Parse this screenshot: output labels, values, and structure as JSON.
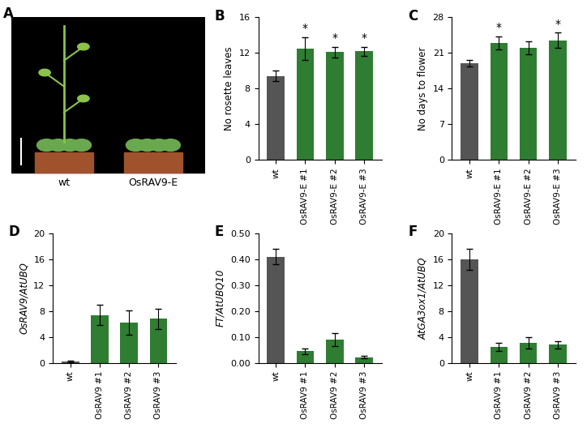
{
  "photo": {
    "label": "A",
    "texts": [
      "wt",
      "OsRAV9-E"
    ]
  },
  "chart_data": [
    {
      "label": "B",
      "type": "bar",
      "y_label": "No rosette leaves",
      "categories": [
        "wt",
        "OsRAV9-E #1",
        "OsRAV9-E #2",
        "OsRAV9-E #3"
      ],
      "values": [
        9.4,
        12.5,
        12.1,
        12.2
      ],
      "errors": [
        0.6,
        1.3,
        0.6,
        0.5
      ],
      "annotations": [
        null,
        "*",
        "*",
        "*"
      ],
      "colors": [
        "#555555",
        "#2f7d32",
        "#2f7d32",
        "#2f7d32"
      ],
      "ylim": [
        0,
        16
      ],
      "yticks": [
        0,
        4,
        8,
        12,
        16
      ]
    },
    {
      "label": "C",
      "type": "bar",
      "y_label": "No days to flower",
      "categories": [
        "wt",
        "OsRAV9-E #1",
        "OsRAV9-E #2",
        "OsRAV9-E #3"
      ],
      "values": [
        19,
        23,
        22,
        23.5
      ],
      "errors": [
        0.6,
        1.3,
        1.3,
        1.5
      ],
      "annotations": [
        null,
        "*",
        null,
        "*"
      ],
      "colors": [
        "#555555",
        "#2f7d32",
        "#2f7d32",
        "#2f7d32"
      ],
      "ylim": [
        0,
        28
      ],
      "yticks": [
        0,
        7,
        14,
        21,
        28
      ]
    },
    {
      "label": "D",
      "type": "bar",
      "y_label": "OsRAV9/AtUBQ",
      "categories": [
        "wt",
        "OsRAV9 #1",
        "OsRAV9 #2",
        "OsRAV9 #3"
      ],
      "values": [
        0.2,
        7.4,
        6.2,
        6.8
      ],
      "errors": [
        0.1,
        1.6,
        1.9,
        1.6
      ],
      "colors": [
        "#555555",
        "#2f7d32",
        "#2f7d32",
        "#2f7d32"
      ],
      "ylim": [
        0,
        20
      ],
      "yticks": [
        0,
        4,
        8,
        12,
        16,
        20
      ]
    },
    {
      "label": "E",
      "type": "bar",
      "y_label": "FT/AtUBQ10",
      "categories": [
        "wt",
        "OsRAV9 #1",
        "OsRAV9 #2",
        "OsRAV9 #3"
      ],
      "values": [
        0.41,
        0.045,
        0.09,
        0.022
      ],
      "errors": [
        0.03,
        0.01,
        0.025,
        0.005
      ],
      "colors": [
        "#555555",
        "#2f7d32",
        "#2f7d32",
        "#2f7d32"
      ],
      "ylim": [
        0,
        0.5
      ],
      "yticks": [
        {
          "value": 0,
          "label": "0.00"
        },
        {
          "value": 0.1,
          "label": "0.10"
        },
        {
          "value": 0.2,
          "label": "0.20"
        },
        {
          "value": 0.3,
          "label": "0.30"
        },
        {
          "value": 0.4,
          "label": "0.40"
        },
        {
          "value": 0.5,
          "label": "0.50"
        }
      ]
    },
    {
      "label": "F",
      "type": "bar",
      "y_label": "AtGA3ox1/AtUBQ",
      "categories": [
        "wt",
        "OsRAV9 #1",
        "OsRAV9 #2",
        "OsRAV9 #3"
      ],
      "values": [
        16,
        2.5,
        3.1,
        2.8
      ],
      "errors": [
        1.6,
        0.6,
        0.9,
        0.6
      ],
      "colors": [
        "#555555",
        "#2f7d32",
        "#2f7d32",
        "#2f7d32"
      ],
      "ylim": [
        0,
        20
      ],
      "yticks": [
        0,
        4,
        8,
        12,
        16,
        20
      ]
    }
  ]
}
